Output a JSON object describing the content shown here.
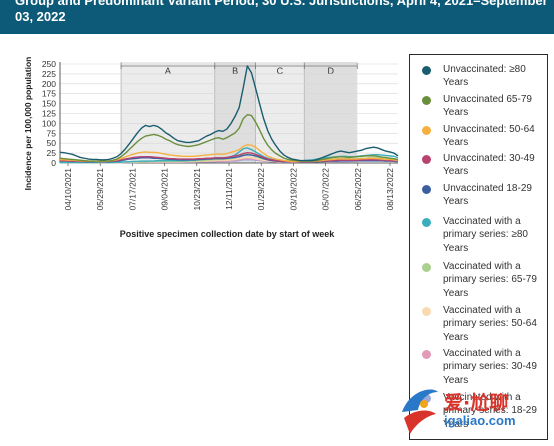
{
  "header": {
    "title": "Group and Predominant Variant Period, 30 U.S. Jurisdictions, April 4, 2021–September 03, 2022",
    "bg_color": "#0d5a78"
  },
  "chart_data": {
    "type": "line",
    "ylabel": "Incidence per 100,000 population",
    "xlabel": "Positive specimen collection date by start of week",
    "ylim": [
      0,
      250
    ],
    "y_ticks": [
      "0",
      "25",
      "50",
      "75",
      "100",
      "125",
      "150",
      "175",
      "200",
      "225",
      "250"
    ],
    "x_ticks": [
      "04/10/2021",
      "05/29/2021",
      "07/17/2021",
      "09/04/2021",
      "10/23/2021",
      "12/11/2021",
      "01/29/2022",
      "03/19/2022",
      "05/07/2022",
      "06/25/2022",
      "08/13/2022"
    ],
    "periods": [
      {
        "label": "A",
        "start": 15,
        "end": 38
      },
      {
        "label": "B",
        "start": 38,
        "end": 48
      },
      {
        "label": "C",
        "start": 48,
        "end": 60
      },
      {
        "label": "D",
        "start": 60,
        "end": 73
      }
    ],
    "series": [
      {
        "name": "Unvaccinated: ≥80 Years",
        "color": "#1a5d6e",
        "values": [
          27,
          26,
          24,
          22,
          18,
          14,
          12,
          10,
          9,
          9,
          8,
          8,
          9,
          12,
          16,
          24,
          35,
          48,
          62,
          76,
          88,
          95,
          92,
          95,
          92,
          85,
          76,
          70,
          62,
          56,
          54,
          52,
          52,
          54,
          56,
          62,
          68,
          72,
          78,
          82,
          80,
          86,
          100,
          118,
          140,
          190,
          245,
          228,
          190,
          150,
          112,
          82,
          60,
          44,
          30,
          20,
          14,
          10,
          8,
          6,
          6,
          6,
          6,
          8,
          12,
          16,
          20,
          24,
          28,
          30,
          28,
          26,
          28,
          30,
          32,
          36,
          38,
          40,
          38,
          34,
          30,
          28,
          25,
          18
        ]
      },
      {
        "name": "Unvaccinated 65-79 Years",
        "color": "#6a8f3c",
        "values": [
          12,
          11,
          10,
          9,
          8,
          7,
          6,
          5,
          5,
          5,
          5,
          5,
          5,
          7,
          10,
          16,
          24,
          34,
          44,
          54,
          62,
          68,
          70,
          72,
          70,
          66,
          60,
          56,
          50,
          46,
          44,
          42,
          42,
          44,
          46,
          50,
          54,
          58,
          62,
          64,
          60,
          64,
          70,
          76,
          88,
          112,
          122,
          120,
          104,
          84,
          62,
          45,
          33,
          24,
          18,
          12,
          9,
          7,
          6,
          5,
          5,
          5,
          5,
          6,
          8,
          10,
          12,
          14,
          15,
          16,
          15,
          14,
          15,
          16,
          17,
          18,
          18,
          18,
          17,
          15,
          14,
          12,
          11,
          8
        ]
      },
      {
        "name": "Unvaccinated: 50-64 Years",
        "color": "#f5b041",
        "values": [
          8,
          8,
          7,
          7,
          6,
          6,
          5,
          5,
          5,
          4,
          4,
          4,
          5,
          6,
          8,
          11,
          15,
          19,
          22,
          25,
          27,
          28,
          27,
          27,
          26,
          24,
          22,
          20,
          19,
          18,
          17,
          17,
          17,
          17,
          18,
          19,
          20,
          21,
          22,
          23,
          22,
          24,
          27,
          30,
          34,
          42,
          46,
          45,
          40,
          32,
          24,
          17,
          13,
          10,
          8,
          6,
          5,
          4,
          4,
          4,
          4,
          4,
          4,
          5,
          6,
          7,
          8,
          9,
          10,
          10,
          10,
          10,
          10,
          10,
          11,
          11,
          12,
          12,
          11,
          10,
          9,
          9,
          8,
          6
        ]
      },
      {
        "name": "Unvaccinated: 30-49 Years",
        "color": "#b8436f",
        "values": [
          6,
          6,
          5,
          5,
          5,
          4,
          4,
          4,
          4,
          4,
          3,
          3,
          4,
          5,
          6,
          8,
          10,
          12,
          14,
          15,
          16,
          16,
          16,
          15,
          14,
          13,
          12,
          11,
          11,
          10,
          10,
          10,
          10,
          10,
          11,
          11,
          12,
          12,
          13,
          13,
          13,
          14,
          16,
          18,
          20,
          24,
          26,
          25,
          22,
          18,
          14,
          10,
          8,
          6,
          5,
          4,
          4,
          3,
          3,
          3,
          3,
          3,
          3,
          4,
          5,
          5,
          6,
          6,
          7,
          7,
          7,
          7,
          7,
          7,
          8,
          8,
          8,
          8,
          8,
          7,
          7,
          6,
          6,
          5
        ]
      },
      {
        "name": "Unvaccinated 18-29 Years",
        "color": "#3b5ea1",
        "values": [
          5,
          5,
          5,
          4,
          4,
          4,
          3,
          3,
          3,
          3,
          3,
          3,
          3,
          4,
          5,
          6,
          8,
          10,
          11,
          12,
          13,
          13,
          13,
          12,
          12,
          11,
          10,
          9,
          9,
          8,
          8,
          8,
          8,
          8,
          9,
          9,
          10,
          10,
          11,
          11,
          11,
          12,
          13,
          14,
          16,
          19,
          21,
          20,
          18,
          15,
          11,
          8,
          6,
          5,
          4,
          3,
          3,
          3,
          3,
          2,
          2,
          2,
          2,
          3,
          4,
          4,
          5,
          5,
          5,
          6,
          6,
          6,
          6,
          6,
          6,
          6,
          6,
          6,
          6,
          6,
          5,
          5,
          5,
          4
        ]
      },
      {
        "name": "Vaccinated with a primary series: ≥80 Years",
        "color": "#3aaebd",
        "values": [
          1,
          1,
          1,
          1,
          1,
          1,
          1,
          1,
          1,
          1,
          1,
          1,
          1,
          1,
          2,
          2,
          3,
          3,
          4,
          4,
          5,
          5,
          5,
          5,
          6,
          6,
          6,
          6,
          6,
          6,
          6,
          6,
          7,
          7,
          8,
          9,
          10,
          11,
          12,
          13,
          13,
          14,
          16,
          20,
          28,
          36,
          38,
          34,
          28,
          22,
          16,
          12,
          9,
          7,
          6,
          5,
          5,
          5,
          5,
          5,
          6,
          7,
          8,
          10,
          12,
          13,
          14,
          15,
          16,
          17,
          17,
          16,
          16,
          17,
          18,
          19,
          20,
          21,
          21,
          20,
          19,
          18,
          17,
          13
        ]
      },
      {
        "name": "Vaccinated with a primary series: 65-79 Years",
        "color": "#a9d08e",
        "values": [
          1,
          1,
          1,
          1,
          1,
          1,
          1,
          1,
          1,
          1,
          1,
          1,
          1,
          1,
          1,
          2,
          2,
          2,
          3,
          3,
          3,
          3,
          4,
          4,
          4,
          4,
          4,
          4,
          4,
          4,
          4,
          5,
          5,
          5,
          6,
          6,
          7,
          8,
          8,
          9,
          9,
          10,
          11,
          13,
          17,
          21,
          22,
          20,
          17,
          13,
          10,
          8,
          6,
          5,
          4,
          4,
          4,
          4,
          4,
          4,
          4,
          5,
          6,
          7,
          8,
          9,
          10,
          10,
          11,
          11,
          11,
          11,
          11,
          11,
          12,
          12,
          13,
          13,
          13,
          13,
          12,
          12,
          11,
          9
        ]
      },
      {
        "name": "Vaccinated with a primary series: 50-64 Years",
        "color": "#f8d9b0",
        "values": [
          1,
          1,
          1,
          1,
          1,
          1,
          1,
          1,
          1,
          1,
          1,
          1,
          1,
          1,
          1,
          1,
          2,
          2,
          2,
          2,
          3,
          3,
          3,
          3,
          3,
          3,
          3,
          3,
          3,
          3,
          3,
          4,
          4,
          4,
          4,
          5,
          5,
          6,
          6,
          7,
          7,
          7,
          8,
          9,
          11,
          13,
          14,
          13,
          11,
          9,
          7,
          6,
          5,
          4,
          3,
          3,
          3,
          3,
          3,
          3,
          3,
          4,
          4,
          5,
          6,
          6,
          7,
          7,
          7,
          8,
          8,
          8,
          8,
          8,
          8,
          9,
          9,
          9,
          9,
          9,
          8,
          8,
          8,
          6
        ]
      },
      {
        "name": "Vaccinated with a primary series: 30-49 Years",
        "color": "#e39ab8",
        "values": [
          1,
          1,
          1,
          1,
          1,
          1,
          1,
          1,
          1,
          1,
          1,
          1,
          1,
          1,
          1,
          1,
          1,
          2,
          2,
          2,
          2,
          2,
          2,
          2,
          2,
          2,
          2,
          2,
          2,
          2,
          2,
          3,
          3,
          3,
          3,
          3,
          4,
          4,
          4,
          5,
          5,
          5,
          6,
          7,
          8,
          10,
          11,
          10,
          9,
          7,
          6,
          5,
          4,
          3,
          3,
          3,
          2,
          2,
          2,
          2,
          2,
          3,
          3,
          4,
          4,
          5,
          5,
          5,
          5,
          6,
          6,
          6,
          6,
          6,
          6,
          6,
          7,
          7,
          7,
          7,
          6,
          6,
          6,
          5
        ]
      },
      {
        "name": "Vaccinated with a primary series: 18-29 Years",
        "color": "#9aa9d6",
        "values": [
          1,
          1,
          1,
          1,
          1,
          1,
          1,
          1,
          1,
          1,
          1,
          1,
          1,
          1,
          1,
          1,
          1,
          1,
          1,
          2,
          2,
          2,
          2,
          2,
          2,
          2,
          2,
          2,
          2,
          2,
          2,
          2,
          2,
          2,
          3,
          3,
          3,
          3,
          3,
          4,
          4,
          4,
          5,
          5,
          6,
          8,
          8,
          8,
          7,
          6,
          5,
          4,
          3,
          3,
          2,
          2,
          2,
          2,
          2,
          2,
          2,
          2,
          2,
          3,
          3,
          4,
          4,
          4,
          4,
          4,
          4,
          4,
          5,
          5,
          5,
          5,
          5,
          5,
          5,
          5,
          5,
          5,
          4,
          3
        ]
      }
    ]
  },
  "watermark": {
    "top_text": "爱·尬聊",
    "bottom_text": "igaliao.com"
  }
}
